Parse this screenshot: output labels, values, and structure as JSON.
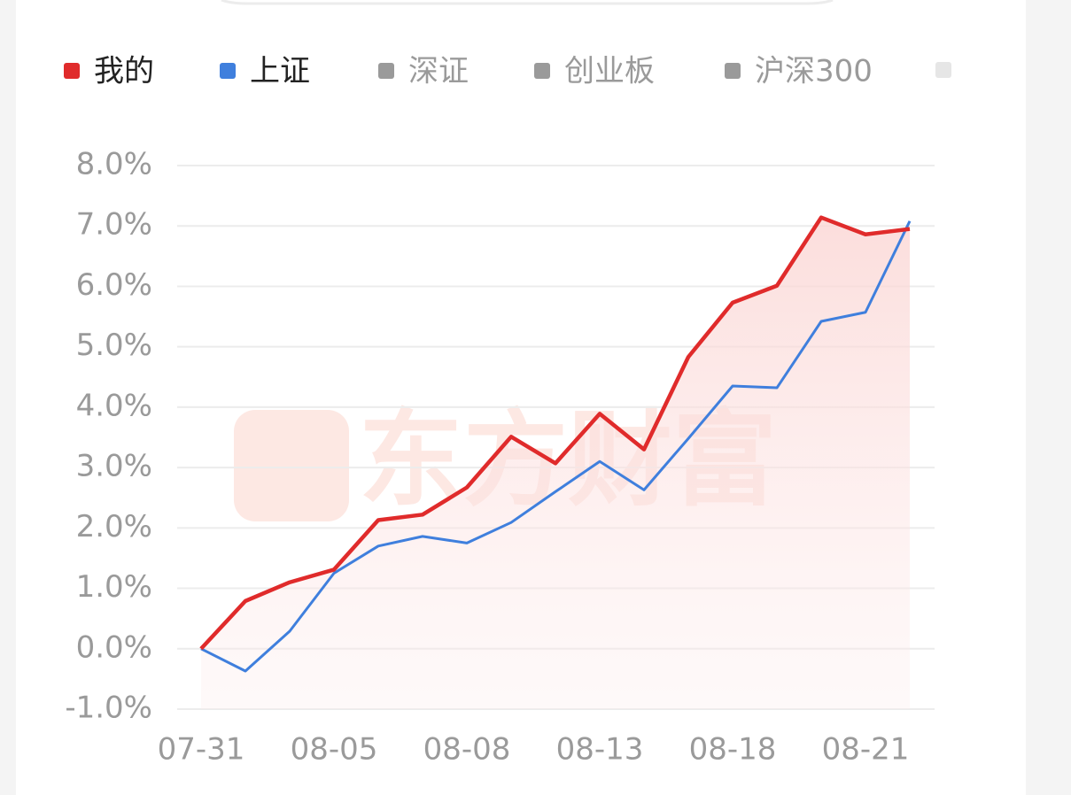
{
  "chart_data": {
    "type": "line",
    "categories": [
      "07-31",
      null,
      null,
      "08-05",
      null,
      null,
      "08-08",
      null,
      null,
      "08-13",
      null,
      null,
      "08-18",
      null,
      null,
      "08-21",
      null
    ],
    "series": [
      {
        "name": "我的",
        "color": "#e02b2b",
        "values": [
          0.0,
          0.79,
          1.1,
          1.31,
          2.13,
          2.22,
          2.67,
          3.51,
          3.07,
          3.89,
          3.3,
          4.83,
          5.73,
          6.01,
          7.14,
          6.86,
          6.95
        ]
      },
      {
        "name": "上证",
        "color": "#3f7fdd",
        "values": [
          0.0,
          -0.37,
          0.29,
          1.25,
          1.7,
          1.86,
          1.75,
          2.09,
          2.6,
          3.1,
          2.63,
          3.48,
          4.35,
          4.32,
          5.42,
          5.57,
          7.08
        ]
      }
    ],
    "inactive_series": [
      {
        "name": "深证",
        "color": "#9a9a9a"
      },
      {
        "name": "创业板",
        "color": "#9a9a9a"
      },
      {
        "name": "沪深300",
        "color": "#9a9a9a"
      }
    ],
    "ylim": [
      -1,
      8
    ],
    "yticks": [
      {
        "value": -1,
        "label": "-1.0%"
      },
      {
        "value": 0,
        "label": "0.0%"
      },
      {
        "value": 1,
        "label": "1.0%"
      },
      {
        "value": 2,
        "label": "2.0%"
      },
      {
        "value": 3,
        "label": "3.0%"
      },
      {
        "value": 4,
        "label": "4.0%"
      },
      {
        "value": 5,
        "label": "5.0%"
      },
      {
        "value": 6,
        "label": "6.0%"
      },
      {
        "value": 7,
        "label": "7.0%"
      },
      {
        "value": 8,
        "label": "8.0%"
      }
    ],
    "grid": true,
    "watermark": "东方财富"
  }
}
